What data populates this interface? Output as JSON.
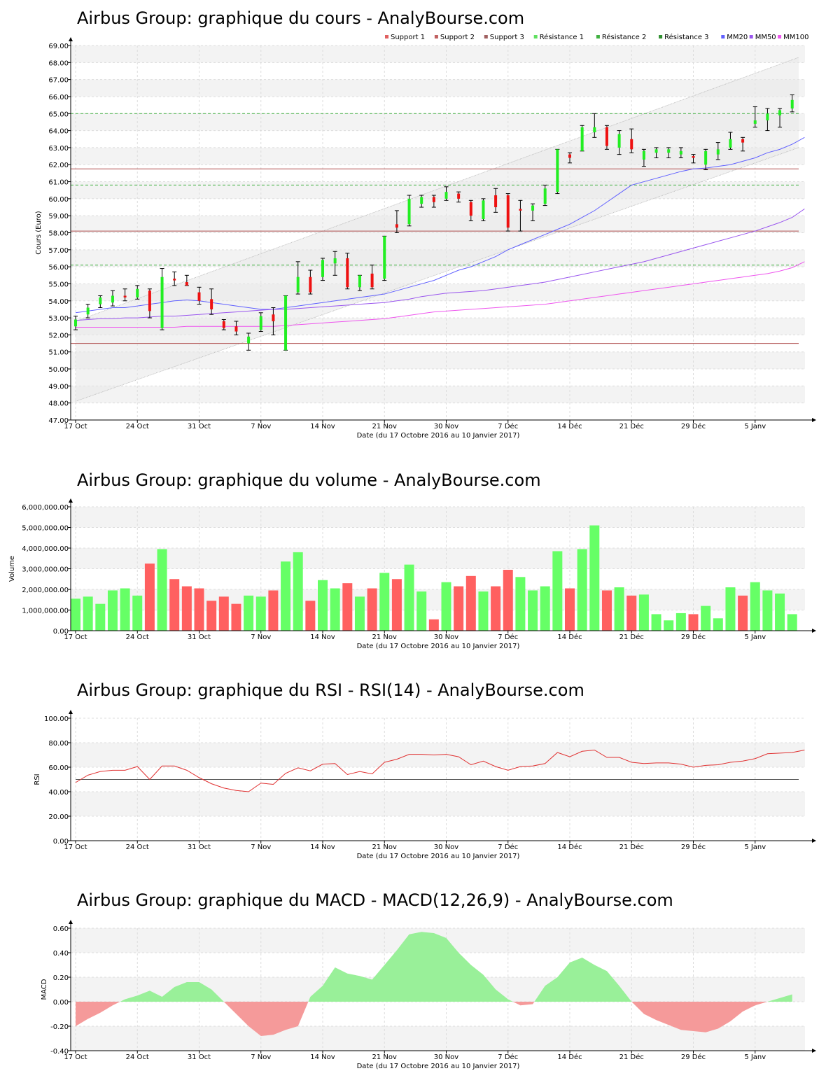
{
  "chart_data": [
    {
      "type": "candlestick",
      "title": "Airbus Group: graphique du cours - AnalyBourse.com",
      "xlabel": "Date (du 17 Octobre 2016 au 10 Janvier 2017)",
      "ylabel": "Cours (Euro)",
      "ylim": [
        47,
        69
      ],
      "yticks": [
        "47.00",
        "48.00",
        "49.00",
        "50.00",
        "51.00",
        "52.00",
        "53.00",
        "54.00",
        "55.00",
        "56.00",
        "57.00",
        "58.00",
        "59.00",
        "60.00",
        "61.00",
        "62.00",
        "63.00",
        "64.00",
        "65.00",
        "66.00",
        "67.00",
        "68.00",
        "69.00"
      ],
      "xticks": [
        {
          "i": 0,
          "label": "17 Oct"
        },
        {
          "i": 5,
          "label": "24 Oct"
        },
        {
          "i": 10,
          "label": "31 Oct"
        },
        {
          "i": 15,
          "label": "7 Nov"
        },
        {
          "i": 20,
          "label": "14 Nov"
        },
        {
          "i": 25,
          "label": "21 Nov"
        },
        {
          "i": 30,
          "label": "30 Nov"
        },
        {
          "i": 35,
          "label": "7 Déc"
        },
        {
          "i": 40,
          "label": "14 Déc"
        },
        {
          "i": 45,
          "label": "21 Déc"
        },
        {
          "i": 50,
          "label": "29 Déc"
        },
        {
          "i": 55,
          "label": "5 Janv"
        }
      ],
      "legend": [
        {
          "name": "Support 1",
          "color": "#e06060"
        },
        {
          "name": "Support 2",
          "color": "#c06060"
        },
        {
          "name": "Support 3",
          "color": "#a06060"
        },
        {
          "name": "Résistance 1",
          "color": "#60e060"
        },
        {
          "name": "Résistance 2",
          "color": "#40b040"
        },
        {
          "name": "Résistance 3",
          "color": "#309030"
        },
        {
          "name": "MM20",
          "color": "#6060ff"
        },
        {
          "name": "MM50",
          "color": "#9955ee"
        },
        {
          "name": "MM100",
          "color": "#ee55ee"
        }
      ],
      "levels": {
        "support": [
          51.5,
          58.1,
          61.75
        ],
        "resistance": [
          56.1,
          60.8,
          65.0
        ]
      },
      "trend_channel": {
        "upper": [
          52.8,
          68.3
        ],
        "lower": [
          48.1,
          63.0
        ]
      },
      "candles": [
        {
          "o": 52.5,
          "c": 52.9,
          "h": 53.1,
          "l": 52.3
        },
        {
          "o": 53.2,
          "c": 53.6,
          "h": 53.8,
          "l": 53.0
        },
        {
          "o": 53.8,
          "c": 54.2,
          "h": 54.3,
          "l": 53.6
        },
        {
          "o": 53.9,
          "c": 54.3,
          "h": 54.6,
          "l": 53.7
        },
        {
          "o": 54.3,
          "c": 54.2,
          "h": 54.7,
          "l": 54.0
        },
        {
          "o": 54.2,
          "c": 54.7,
          "h": 54.9,
          "l": 54.1
        },
        {
          "o": 54.6,
          "c": 53.4,
          "h": 54.7,
          "l": 53.0
        },
        {
          "o": 52.4,
          "c": 55.4,
          "h": 55.9,
          "l": 52.3
        },
        {
          "o": 55.3,
          "c": 55.2,
          "h": 55.7,
          "l": 54.9
        },
        {
          "o": 55.1,
          "c": 54.9,
          "h": 55.5,
          "l": 54.9
        },
        {
          "o": 54.5,
          "c": 54.0,
          "h": 54.8,
          "l": 53.8
        },
        {
          "o": 54.1,
          "c": 53.5,
          "h": 54.7,
          "l": 53.2
        },
        {
          "o": 52.8,
          "c": 52.4,
          "h": 52.9,
          "l": 52.3
        },
        {
          "o": 52.5,
          "c": 52.2,
          "h": 52.8,
          "l": 52.0
        },
        {
          "o": 51.5,
          "c": 51.9,
          "h": 52.1,
          "l": 51.1
        },
        {
          "o": 52.3,
          "c": 53.1,
          "h": 53.3,
          "l": 52.2
        },
        {
          "o": 53.2,
          "c": 52.8,
          "h": 53.6,
          "l": 52.0
        },
        {
          "o": 51.1,
          "c": 54.3,
          "h": 54.3,
          "l": 51.1
        },
        {
          "o": 54.5,
          "c": 55.4,
          "h": 56.3,
          "l": 54.4
        },
        {
          "o": 55.4,
          "c": 54.5,
          "h": 55.8,
          "l": 54.4
        },
        {
          "o": 55.4,
          "c": 56.4,
          "h": 56.5,
          "l": 55.2
        },
        {
          "o": 56.2,
          "c": 56.5,
          "h": 56.9,
          "l": 55.5
        },
        {
          "o": 56.5,
          "c": 54.8,
          "h": 56.8,
          "l": 54.7
        },
        {
          "o": 54.8,
          "c": 55.5,
          "h": 55.5,
          "l": 54.6
        },
        {
          "o": 55.6,
          "c": 54.8,
          "h": 56.1,
          "l": 54.7
        },
        {
          "o": 55.3,
          "c": 57.8,
          "h": 57.8,
          "l": 55.2
        },
        {
          "o": 58.5,
          "c": 58.3,
          "h": 59.3,
          "l": 58.0
        },
        {
          "o": 58.5,
          "c": 60.0,
          "h": 60.2,
          "l": 58.4
        },
        {
          "o": 59.7,
          "c": 60.1,
          "h": 60.2,
          "l": 59.5
        },
        {
          "o": 60.1,
          "c": 59.8,
          "h": 60.2,
          "l": 59.5
        },
        {
          "o": 60.0,
          "c": 60.4,
          "h": 60.7,
          "l": 59.9
        },
        {
          "o": 60.3,
          "c": 60.0,
          "h": 60.4,
          "l": 59.8
        },
        {
          "o": 59.8,
          "c": 59.0,
          "h": 59.9,
          "l": 58.7
        },
        {
          "o": 58.8,
          "c": 59.9,
          "h": 60.0,
          "l": 58.7
        },
        {
          "o": 60.2,
          "c": 59.5,
          "h": 60.6,
          "l": 59.2
        },
        {
          "o": 60.2,
          "c": 58.3,
          "h": 60.3,
          "l": 58.1
        },
        {
          "o": 59.4,
          "c": 59.3,
          "h": 59.9,
          "l": 58.1
        },
        {
          "o": 59.3,
          "c": 59.6,
          "h": 59.7,
          "l": 58.7
        },
        {
          "o": 59.7,
          "c": 60.6,
          "h": 60.8,
          "l": 59.6
        },
        {
          "o": 60.4,
          "c": 62.9,
          "h": 62.9,
          "l": 60.3
        },
        {
          "o": 62.6,
          "c": 62.4,
          "h": 62.7,
          "l": 62.1
        },
        {
          "o": 62.8,
          "c": 64.2,
          "h": 64.3,
          "l": 62.8
        },
        {
          "o": 63.9,
          "c": 64.2,
          "h": 65.0,
          "l": 63.6
        },
        {
          "o": 64.2,
          "c": 63.1,
          "h": 64.3,
          "l": 62.9
        },
        {
          "o": 63.0,
          "c": 63.8,
          "h": 64.0,
          "l": 62.6
        },
        {
          "o": 63.5,
          "c": 62.9,
          "h": 64.1,
          "l": 62.7
        },
        {
          "o": 62.3,
          "c": 62.8,
          "h": 62.9,
          "l": 61.9
        },
        {
          "o": 62.7,
          "c": 62.9,
          "h": 63.0,
          "l": 62.4
        },
        {
          "o": 62.7,
          "c": 62.9,
          "h": 63.0,
          "l": 62.4
        },
        {
          "o": 62.6,
          "c": 62.8,
          "h": 63.0,
          "l": 62.4
        },
        {
          "o": 62.5,
          "c": 62.4,
          "h": 62.6,
          "l": 62.1
        },
        {
          "o": 62.0,
          "c": 62.8,
          "h": 62.9,
          "l": 61.7
        },
        {
          "o": 62.6,
          "c": 62.9,
          "h": 63.3,
          "l": 62.3
        },
        {
          "o": 63.0,
          "c": 63.5,
          "h": 63.9,
          "l": 62.9
        },
        {
          "o": 63.5,
          "c": 63.3,
          "h": 63.6,
          "l": 62.8
        },
        {
          "o": 64.4,
          "c": 64.6,
          "h": 65.4,
          "l": 64.2
        },
        {
          "o": 64.6,
          "c": 65.0,
          "h": 65.3,
          "l": 64.0
        },
        {
          "o": 64.9,
          "c": 65.2,
          "h": 65.3,
          "l": 64.2
        },
        {
          "o": 65.3,
          "c": 65.8,
          "h": 66.1,
          "l": 65.1
        }
      ],
      "series": [
        {
          "name": "MM20",
          "color": "#6060ff",
          "values": [
            53.3,
            53.4,
            53.5,
            53.6,
            53.6,
            53.7,
            53.8,
            53.9,
            54.0,
            54.05,
            54.0,
            53.9,
            53.8,
            53.7,
            53.6,
            53.5,
            53.5,
            53.6,
            53.7,
            53.8,
            53.9,
            54.0,
            54.1,
            54.2,
            54.3,
            54.4,
            54.6,
            54.8,
            55.0,
            55.2,
            55.5,
            55.8,
            56.0,
            56.3,
            56.6,
            57.0,
            57.3,
            57.6,
            57.9,
            58.2,
            58.5,
            58.9,
            59.3,
            59.8,
            60.3,
            60.8,
            61.0,
            61.2,
            61.4,
            61.6,
            61.75,
            61.8,
            61.9,
            62.0,
            62.2,
            62.4,
            62.7,
            62.9,
            63.2,
            63.6
          ]
        },
        {
          "name": "MM50",
          "color": "#9955ee",
          "values": [
            52.85,
            52.9,
            52.95,
            52.95,
            53.0,
            53.0,
            53.05,
            53.1,
            53.1,
            53.15,
            53.2,
            53.25,
            53.3,
            53.35,
            53.4,
            53.45,
            53.5,
            53.5,
            53.55,
            53.6,
            53.65,
            53.7,
            53.75,
            53.8,
            53.85,
            53.9,
            54.0,
            54.1,
            54.25,
            54.35,
            54.45,
            54.5,
            54.55,
            54.6,
            54.7,
            54.8,
            54.9,
            55.0,
            55.1,
            55.25,
            55.4,
            55.55,
            55.7,
            55.85,
            56.0,
            56.15,
            56.3,
            56.5,
            56.7,
            56.9,
            57.1,
            57.3,
            57.5,
            57.7,
            57.9,
            58.1,
            58.35,
            58.6,
            58.9,
            59.4
          ]
        },
        {
          "name": "MM100",
          "color": "#ee55ee",
          "values": [
            52.45,
            52.45,
            52.45,
            52.45,
            52.45,
            52.45,
            52.45,
            52.45,
            52.45,
            52.5,
            52.5,
            52.5,
            52.5,
            52.5,
            52.5,
            52.5,
            52.5,
            52.55,
            52.6,
            52.65,
            52.7,
            52.75,
            52.8,
            52.85,
            52.9,
            52.95,
            53.05,
            53.15,
            53.25,
            53.35,
            53.4,
            53.45,
            53.5,
            53.55,
            53.6,
            53.65,
            53.7,
            53.75,
            53.8,
            53.9,
            54.0,
            54.1,
            54.2,
            54.3,
            54.4,
            54.5,
            54.6,
            54.7,
            54.8,
            54.9,
            55.0,
            55.1,
            55.2,
            55.3,
            55.4,
            55.5,
            55.6,
            55.75,
            55.95,
            56.3
          ]
        }
      ]
    },
    {
      "type": "bar",
      "title": "Airbus Group: graphique du volume - AnalyBourse.com",
      "xlabel": "Date (du 17 Octobre 2016 au 10 Janvier 2017)",
      "ylabel": "Volume",
      "ylim": [
        0,
        6000000
      ],
      "yticks": [
        "0.00",
        "1,000,000.00",
        "2,000,000.00",
        "3,000,000.00",
        "4,000,000.00",
        "5,000,000.00",
        "6,000,000.00"
      ],
      "values": [
        1550000,
        1650000,
        1300000,
        1950000,
        2050000,
        1700000,
        3250000,
        3950000,
        2500000,
        2150000,
        2050000,
        1450000,
        1650000,
        1300000,
        1700000,
        1650000,
        1950000,
        3350000,
        3800000,
        1450000,
        2450000,
        2050000,
        2300000,
        1650000,
        2050000,
        2800000,
        2500000,
        3200000,
        1900000,
        550000,
        2350000,
        2150000,
        2650000,
        1900000,
        2150000,
        2950000,
        2600000,
        1950000,
        2150000,
        3850000,
        2050000,
        3950000,
        5100000,
        1950000,
        2100000,
        1700000,
        1750000,
        800000,
        500000,
        850000,
        800000,
        1200000,
        600000,
        2100000,
        1700000,
        2350000,
        1950000,
        1800000,
        800000
      ],
      "colors": [
        "g",
        "g",
        "g",
        "g",
        "g",
        "g",
        "r",
        "g",
        "r",
        "r",
        "r",
        "r",
        "r",
        "r",
        "g",
        "g",
        "r",
        "g",
        "g",
        "r",
        "g",
        "g",
        "r",
        "g",
        "r",
        "g",
        "r",
        "g",
        "g",
        "r",
        "g",
        "r",
        "r",
        "g",
        "r",
        "r",
        "g",
        "g",
        "g",
        "g",
        "r",
        "g",
        "g",
        "r",
        "g",
        "r",
        "g",
        "g",
        "g",
        "g",
        "r",
        "g",
        "g",
        "g",
        "r",
        "g",
        "g",
        "g",
        "g"
      ],
      "xticks": [
        "17 Oct",
        "24 Oct",
        "31 Oct",
        "7 Nov",
        "14 Nov",
        "21 Nov",
        "30 Nov",
        "7 Déc",
        "14 Déc",
        "21 Déc",
        "29 Déc",
        "5 Janv"
      ]
    },
    {
      "type": "line",
      "title": "Airbus Group: graphique du RSI - RSI(14) - AnalyBourse.com",
      "xlabel": "Date (du 17 Octobre 2016 au 10 Janvier 2017)",
      "ylabel": "RSI",
      "ylim": [
        0,
        100
      ],
      "yticks": [
        "0.00",
        "20.00",
        "40.00",
        "60.00",
        "80.00",
        "100.00"
      ],
      "reference": 50,
      "series": [
        {
          "name": "RSI(14)",
          "color": "#e03030",
          "values": [
            47.5,
            53.5,
            56.5,
            57.5,
            57.5,
            60.5,
            50,
            61,
            61,
            57.5,
            51.5,
            46.5,
            43,
            41,
            40,
            47,
            46,
            55,
            59.5,
            57,
            62.5,
            63,
            54,
            56.5,
            54.5,
            64,
            66.5,
            70.5,
            70.5,
            70,
            70.5,
            68.5,
            62,
            65,
            60.5,
            57.5,
            60.5,
            61,
            63,
            72,
            68.5,
            73,
            74,
            68,
            68,
            64,
            63,
            63.5,
            63.5,
            62.5,
            60,
            61.5,
            62,
            64,
            65,
            67,
            71,
            71.5,
            72,
            74
          ]
        }
      ],
      "xticks": [
        "17 Oct",
        "24 Oct",
        "31 Oct",
        "7 Nov",
        "14 Nov",
        "21 Nov",
        "30 Nov",
        "7 Déc",
        "14 Déc",
        "21 Déc",
        "29 Déc",
        "5 Janv"
      ]
    },
    {
      "type": "area",
      "title": "Airbus Group: graphique du MACD - MACD(12,26,9) - AnalyBourse.com",
      "xlabel": "Date (du 17 Octobre 2016 au 10 Janvier 2017)",
      "ylabel": "MACD",
      "ylim": [
        -0.4,
        0.6
      ],
      "yticks": [
        "-0.40",
        "-0.20",
        "0.00",
        "0.20",
        "0.40",
        "0.60"
      ],
      "series": [
        {
          "name": "MACD",
          "positive_color": "#99f099",
          "negative_color": "#f59a9a",
          "values": [
            -0.2,
            -0.14,
            -0.09,
            -0.03,
            0.02,
            0.05,
            0.09,
            0.04,
            0.12,
            0.16,
            0.16,
            0.1,
            0.0,
            -0.1,
            -0.2,
            -0.28,
            -0.27,
            -0.23,
            -0.2,
            0.04,
            0.13,
            0.28,
            0.23,
            0.21,
            0.18,
            0.3,
            0.42,
            0.55,
            0.57,
            0.56,
            0.52,
            0.4,
            0.3,
            0.22,
            0.1,
            0.02,
            -0.03,
            -0.02,
            0.13,
            0.2,
            0.32,
            0.36,
            0.3,
            0.25,
            0.13,
            0.0,
            -0.1,
            -0.15,
            -0.19,
            -0.23,
            -0.24,
            -0.25,
            -0.22,
            -0.16,
            -0.08,
            -0.03,
            0.0,
            0.03,
            0.06
          ]
        }
      ],
      "xticks": [
        "17 Oct",
        "24 Oct",
        "31 Oct",
        "7 Nov",
        "14 Nov",
        "21 Nov",
        "30 Nov",
        "7 Déc",
        "14 Déc",
        "21 Déc",
        "29 Déc",
        "5 Janv"
      ]
    }
  ]
}
